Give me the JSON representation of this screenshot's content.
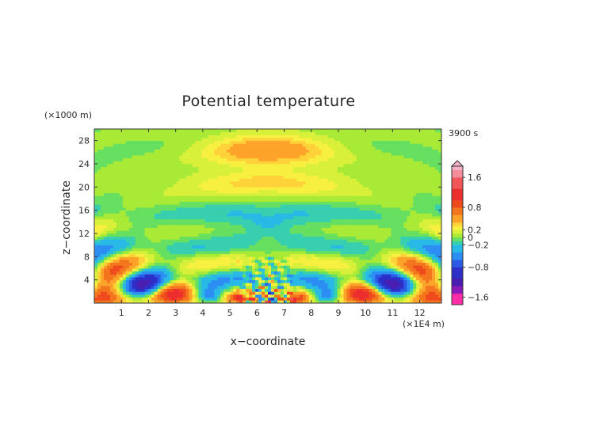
{
  "chart_data": {
    "type": "heatmap",
    "title": "Potential temperature",
    "xlabel": "x−coordinate",
    "ylabel": "z−coordinate",
    "x_unit": "(×1E4 m)",
    "y_unit": "(×1000 m)",
    "time_label": "3900 s",
    "xlim": [
      0,
      12.8
    ],
    "ylim": [
      0,
      30
    ],
    "x_ticks": [
      "1",
      "2",
      "3",
      "4",
      "5",
      "6",
      "7",
      "8",
      "9",
      "10",
      "11",
      "12"
    ],
    "y_ticks": [
      "4",
      "8",
      "12",
      "16",
      "20",
      "24",
      "28"
    ],
    "colorbar": {
      "range": [
        -1.8,
        1.9
      ],
      "labels": [
        "1.6",
        "0.8",
        "0.2",
        "0",
        "−0.2",
        "−0.8",
        "−1.6"
      ],
      "label_values": [
        1.6,
        0.8,
        0.2,
        0.0,
        -0.2,
        -0.8,
        -1.6
      ],
      "levels": [
        {
          "value": 1.8,
          "color": "#f6b2c4"
        },
        {
          "value": 1.6,
          "color": "#f28c9a"
        },
        {
          "value": 1.3,
          "color": "#f05656"
        },
        {
          "value": 1.0,
          "color": "#ec2e2e"
        },
        {
          "value": 0.8,
          "color": "#ef4a1e"
        },
        {
          "value": 0.6,
          "color": "#f3761e"
        },
        {
          "value": 0.4,
          "color": "#fda32a"
        },
        {
          "value": 0.3,
          "color": "#ffd23a"
        },
        {
          "value": 0.2,
          "color": "#f7f040"
        },
        {
          "value": 0.1,
          "color": "#d9f03a"
        },
        {
          "value": 0.0,
          "color": "#a9ea36"
        },
        {
          "value": -0.1,
          "color": "#67df60"
        },
        {
          "value": -0.2,
          "color": "#38cfb0"
        },
        {
          "value": -0.4,
          "color": "#28b9e6"
        },
        {
          "value": -0.6,
          "color": "#2c8ef2"
        },
        {
          "value": -0.8,
          "color": "#2b5be6"
        },
        {
          "value": -1.1,
          "color": "#2d2fc8"
        },
        {
          "value": -1.3,
          "color": "#4a1eb0"
        },
        {
          "value": -1.5,
          "color": "#8a1ab8"
        },
        {
          "value": -1.8,
          "color": "#ff2da8"
        }
      ]
    }
  }
}
